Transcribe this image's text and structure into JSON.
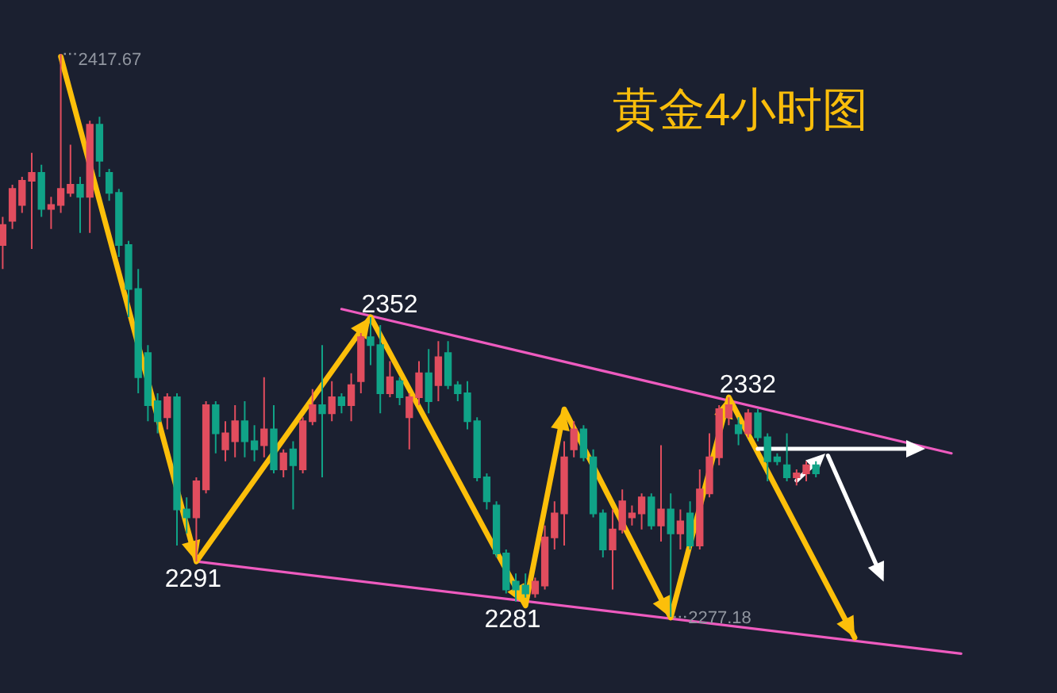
{
  "chart_data": {
    "type": "candlestick",
    "title": "黄金4小时图",
    "categories": [
      null,
      null,
      null,
      null,
      null,
      null,
      null,
      null,
      null,
      null,
      null,
      null,
      null,
      null,
      null,
      null,
      null,
      null,
      null,
      null,
      null,
      null,
      null,
      null,
      null,
      null,
      null,
      null,
      null,
      null,
      null,
      null,
      null,
      null,
      null,
      null,
      null,
      null,
      null,
      null,
      null,
      null,
      null,
      null,
      null,
      null,
      null,
      null,
      null,
      null,
      null,
      null,
      null,
      null,
      null,
      null,
      null,
      null,
      null,
      null,
      null,
      null,
      null,
      null,
      null,
      null,
      null,
      null,
      null,
      null,
      null,
      null,
      null,
      null,
      null,
      null,
      null,
      null,
      null,
      null,
      null,
      null,
      null,
      null,
      null,
      null,
      null,
      null,
      null,
      null,
      null,
      null,
      null,
      null,
      null,
      null,
      null,
      null,
      null,
      null
    ],
    "ohlc": [
      [
        2370,
        2377,
        2364,
        2375
      ],
      [
        2376,
        2385,
        2374,
        2384
      ],
      [
        2380,
        2387,
        2378,
        2386
      ],
      [
        2386,
        2393,
        2369,
        2388
      ],
      [
        2388,
        2390,
        2377,
        2379
      ],
      [
        2379,
        2382,
        2374,
        2380
      ],
      [
        2380,
        2417.67,
        2378,
        2384
      ],
      [
        2383,
        2395,
        2382,
        2385
      ],
      [
        2385,
        2387,
        2373,
        2382
      ],
      [
        2382,
        2401,
        2373,
        2400
      ],
      [
        2400,
        2402,
        2387,
        2391
      ],
      [
        2388,
        2389,
        2381,
        2383
      ],
      [
        2383,
        2384,
        2367,
        2370
      ],
      [
        2370,
        2371,
        2352,
        2359
      ],
      [
        2359,
        2364,
        2333,
        2337
      ],
      [
        2343,
        2345,
        2326,
        2330
      ],
      [
        2331,
        2333,
        2323,
        2326
      ],
      [
        2327,
        2333,
        2324,
        2332
      ],
      [
        2332,
        2333,
        2295,
        2304
      ],
      [
        2304,
        2307,
        2298,
        2302
      ],
      [
        2302,
        2312,
        2291,
        2311
      ],
      [
        2309,
        2331,
        2308,
        2330
      ],
      [
        2330,
        2331,
        2318,
        2323
      ],
      [
        2319,
        2326,
        2316,
        2323
      ],
      [
        2321,
        2330,
        2317,
        2326
      ],
      [
        2326,
        2331,
        2317,
        2321
      ],
      [
        2321,
        2325,
        2316,
        2319
      ],
      [
        2320,
        2337,
        2317,
        2324
      ],
      [
        2324,
        2330,
        2313,
        2314
      ],
      [
        2314,
        2319,
        2312,
        2318
      ],
      [
        2319,
        2321,
        2304,
        2315
      ],
      [
        2314,
        2327,
        2313,
        2326
      ],
      [
        2326,
        2334,
        2325,
        2330
      ],
      [
        2330,
        2345,
        2312,
        2328
      ],
      [
        2328,
        2336,
        2326,
        2332
      ],
      [
        2332,
        2333,
        2328,
        2330
      ],
      [
        2330,
        2338,
        2326,
        2335
      ],
      [
        2336,
        2348,
        2333,
        2347
      ],
      [
        2347,
        2352,
        2340,
        2345
      ],
      [
        2345,
        2350,
        2328,
        2333
      ],
      [
        2333,
        2341,
        2332,
        2337
      ],
      [
        2336,
        2337,
        2330,
        2332
      ],
      [
        2327,
        2333,
        2319,
        2332
      ],
      [
        2332,
        2341,
        2330,
        2338
      ],
      [
        2338,
        2344,
        2328,
        2331
      ],
      [
        2335,
        2346,
        2331,
        2342
      ],
      [
        2343,
        2346,
        2334,
        2335
      ],
      [
        2335,
        2336,
        2331,
        2333
      ],
      [
        2333,
        2336,
        2324,
        2326
      ],
      [
        2326,
        2327,
        2311,
        2312
      ],
      [
        2312,
        2313,
        2304,
        2306
      ],
      [
        2305,
        2306,
        2292,
        2293
      ],
      [
        2293,
        2294,
        2283,
        2284
      ],
      [
        2286,
        2288,
        2281,
        2284
      ],
      [
        2285,
        2288,
        2282,
        2283
      ],
      [
        2283,
        2287,
        2282,
        2286
      ],
      [
        2285,
        2300,
        2284,
        2297
      ],
      [
        2297,
        2306,
        2294,
        2303
      ],
      [
        2303,
        2321,
        2295,
        2317
      ],
      [
        2319,
        2326,
        2317,
        2324
      ],
      [
        2324,
        2325,
        2316,
        2317
      ],
      [
        2317,
        2319,
        2302,
        2303
      ],
      [
        2303,
        2304,
        2292,
        2294
      ],
      [
        2294,
        2304,
        2284,
        2299
      ],
      [
        2299,
        2309,
        2298,
        2306
      ],
      [
        2302,
        2305,
        2300,
        2303
      ],
      [
        2303,
        2308,
        2299,
        2307
      ],
      [
        2307,
        2308,
        2299,
        2300
      ],
      [
        2300,
        2320,
        2296,
        2304
      ],
      [
        2304,
        2308,
        2277.18,
        2298
      ],
      [
        2298,
        2304,
        2294,
        2301
      ],
      [
        2303,
        2306,
        2294,
        2295
      ],
      [
        2295,
        2314,
        2294,
        2309
      ],
      [
        2308,
        2323,
        2307,
        2317
      ],
      [
        2317,
        2330,
        2315,
        2329
      ],
      [
        2327,
        2332,
        2325,
        2330
      ],
      [
        2325,
        2327,
        2320,
        2323
      ],
      [
        2323,
        2329,
        2322,
        2328
      ],
      [
        2328,
        2329,
        2321,
        2322
      ],
      [
        2322,
        2323,
        2311,
        2316
      ],
      [
        2317,
        2318,
        2315,
        2316
      ],
      [
        2315,
        2323,
        2311,
        2312
      ],
      [
        2312,
        2314,
        2310,
        2313
      ],
      [
        2313,
        2316,
        2311,
        2315
      ],
      [
        2315,
        2316,
        2312,
        2313
      ],
      null,
      null,
      null,
      null,
      null,
      null,
      null,
      null,
      null,
      null,
      null,
      null,
      null,
      null,
      null
    ],
    "annotations": [
      "2417.67",
      {
        "text": "2352",
        "y": 2352
      },
      {
        "text": "2291",
        "y": 2291
      },
      {
        "text": "2281",
        "y": 2281
      },
      {
        "text": "2332",
        "y": 2332
      },
      {
        "text": "2277.18",
        "y": 2277.18
      }
    ],
    "series": [
      {
        "type": "line",
        "color": "#ee5bbf",
        "values": [
          null,
          null,
          null,
          null,
          null,
          null,
          null,
          null,
          null,
          null,
          null,
          null,
          null,
          null,
          null,
          null,
          null,
          null,
          null,
          null,
          null,
          null,
          null,
          null,
          null,
          null,
          null,
          null,
          null,
          null,
          null,
          null,
          null,
          null,
          null,
          2354,
          null,
          null,
          null,
          null,
          null,
          null,
          null,
          null,
          null,
          null,
          null,
          null,
          null,
          null,
          null,
          null,
          null,
          null,
          null,
          null,
          null,
          null,
          null,
          null,
          null,
          null,
          null,
          null,
          null,
          null,
          null,
          null,
          null,
          null,
          null,
          null,
          null,
          null,
          null,
          null,
          null,
          null,
          null,
          null,
          null,
          null,
          null,
          null,
          null,
          null,
          null,
          null,
          null,
          null,
          null,
          null,
          null,
          null,
          null,
          null,
          null,
          null,
          2318,
          null
        ]
      },
      {
        "type": "line",
        "color": "#ee5bbf",
        "values": [
          null,
          null,
          null,
          null,
          null,
          null,
          null,
          null,
          null,
          null,
          null,
          null,
          null,
          null,
          null,
          null,
          null,
          null,
          null,
          null,
          2291,
          null,
          null,
          null,
          null,
          null,
          null,
          null,
          null,
          null,
          null,
          null,
          null,
          null,
          null,
          null,
          null,
          null,
          null,
          null,
          null,
          null,
          null,
          null,
          null,
          null,
          null,
          null,
          null,
          null,
          null,
          null,
          null,
          null,
          null,
          null,
          null,
          null,
          null,
          null,
          null,
          null,
          null,
          null,
          null,
          null,
          null,
          null,
          null,
          null,
          null,
          null,
          null,
          null,
          null,
          null,
          null,
          null,
          null,
          null,
          null,
          null,
          null,
          null,
          null,
          null,
          null,
          null,
          null,
          null,
          null,
          null,
          null,
          null,
          null,
          null,
          null,
          null,
          null,
          2268
        ]
      },
      {
        "type": "line",
        "color": "#fcbf0a",
        "values": [
          null,
          null,
          null,
          null,
          null,
          null,
          2417,
          null,
          null,
          null,
          null,
          null,
          null,
          null,
          null,
          null,
          null,
          null,
          null,
          null,
          2291,
          null,
          null,
          null,
          null,
          null,
          null,
          null,
          null,
          null,
          null,
          null,
          null,
          null,
          null,
          null,
          null,
          null,
          2352,
          null,
          null,
          null,
          null,
          null,
          null,
          null,
          null,
          null,
          null,
          null,
          null,
          null,
          null,
          null,
          2280,
          null,
          null,
          null,
          2329,
          null,
          null,
          null,
          null,
          null,
          null,
          null,
          null,
          null,
          null,
          2277,
          null,
          null,
          null,
          null,
          null,
          2332,
          null,
          null,
          null,
          null,
          null,
          null,
          null,
          null,
          null,
          null,
          null,
          null,
          2272,
          null,
          null,
          null,
          null,
          null,
          null,
          null,
          null,
          null,
          null,
          null
        ]
      }
    ]
  }
}
